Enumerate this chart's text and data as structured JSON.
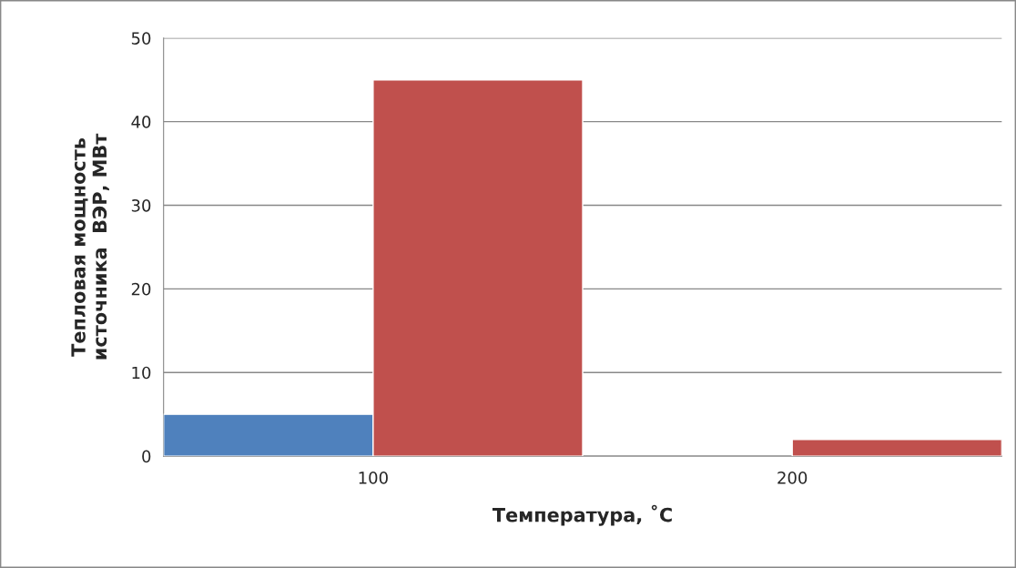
{
  "chart_data": {
    "type": "bar",
    "xlabel": "Температура, ˚C",
    "ylabel": "Тепловая мощность\nисточника  ВЭР, МВт",
    "categories": [
      "100",
      "200"
    ],
    "series": [
      {
        "color": "#4f81bd",
        "values": [
          5,
          null
        ]
      },
      {
        "color": "#c0504d",
        "values": [
          45,
          2
        ]
      }
    ],
    "ylim": [
      0,
      50
    ],
    "yticks": [
      0,
      10,
      20,
      30,
      40,
      50
    ],
    "grid": "y",
    "legend": false
  }
}
